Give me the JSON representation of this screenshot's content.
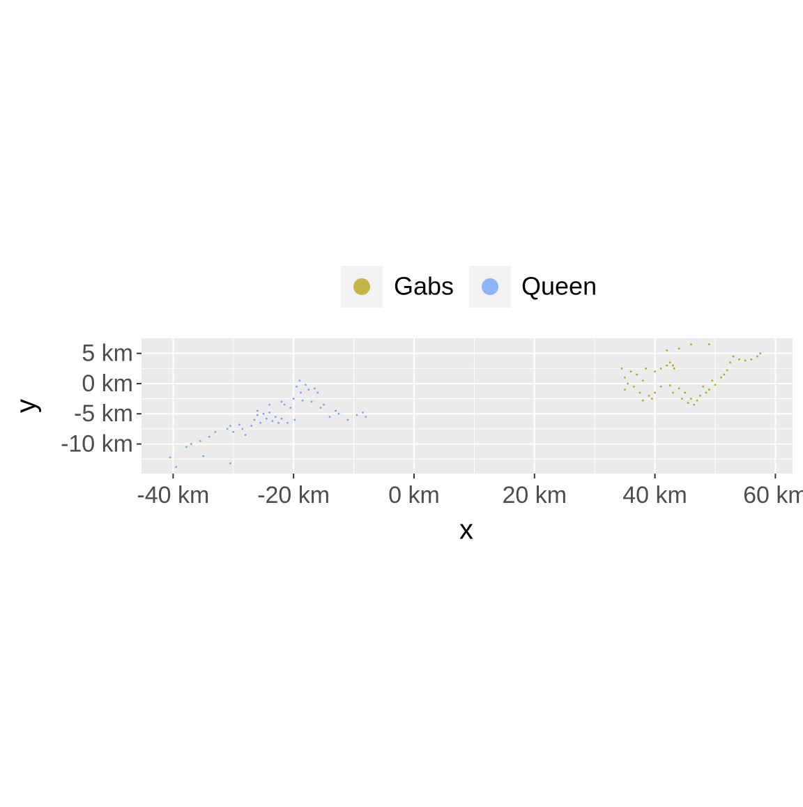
{
  "chart_data": {
    "type": "scatter",
    "x_label": "x",
    "y_label": "y",
    "xlim": [
      -45.25,
      62.85
    ],
    "ylim": [
      -14.9,
      7.5
    ],
    "xticks": [
      {
        "value": -40,
        "label": "-40 km"
      },
      {
        "value": -20,
        "label": "-20 km"
      },
      {
        "value": 0,
        "label": "0 km"
      },
      {
        "value": 20,
        "label": "20 km"
      },
      {
        "value": 40,
        "label": "40 km"
      },
      {
        "value": 60,
        "label": "60 km"
      }
    ],
    "yticks": [
      {
        "value": 5,
        "label": "5 km"
      },
      {
        "value": 0,
        "label": "0 km"
      },
      {
        "value": -5,
        "label": "-5 km"
      },
      {
        "value": -10,
        "label": "-10 km"
      }
    ],
    "xminor": [
      -30,
      -10,
      10,
      30,
      50
    ],
    "yminor": [
      2.5,
      -2.5,
      -7.5,
      -12.5
    ],
    "grid": true,
    "legend": "top",
    "series": [
      {
        "name": "Gabs",
        "color": "#b8a51a",
        "x": [
          34.5,
          35,
          35.5,
          35,
          36,
          36.5,
          37,
          37.5,
          38,
          38.5,
          39,
          39.5,
          40,
          40,
          41,
          42,
          42.5,
          43,
          43.2,
          42,
          44,
          42.5,
          44,
          45,
          46,
          45.5,
          46.5,
          47,
          47.5,
          48.5,
          49,
          49.5,
          50,
          51,
          51.5,
          52,
          52.5,
          53,
          54,
          55,
          56,
          57,
          57.5,
          41,
          43,
          48,
          46,
          49,
          38,
          44.5
        ],
        "values": [
          2.5,
          1,
          0,
          -1,
          2,
          -0.5,
          1.5,
          -1.5,
          0.5,
          2.5,
          -2,
          -2.5,
          -1.5,
          2,
          2.5,
          3,
          3.5,
          3,
          2.5,
          5.5,
          5.8,
          -0.3,
          -0.8,
          -1.5,
          -2.5,
          -3.2,
          -3.5,
          -2.8,
          -2,
          -1.5,
          -1,
          0.5,
          -0.2,
          1,
          1.5,
          2.2,
          3.5,
          4.5,
          4,
          3.8,
          4,
          4.5,
          5,
          -0.5,
          -1.5,
          -0.5,
          6.5,
          6.5,
          -2.8,
          -2.5
        ]
      },
      {
        "name": "Queen",
        "color": "#74a3f7",
        "x": [
          -40.5,
          -39.5,
          -37.8,
          -37,
          -35.5,
          -34,
          -33,
          -31,
          -30.5,
          -30,
          -29,
          -28.5,
          -28,
          -27,
          -26.5,
          -26,
          -25.5,
          -25,
          -24.5,
          -24,
          -23.5,
          -23,
          -22.5,
          -22,
          -21.5,
          -21,
          -20.5,
          -20,
          -19.8,
          -19.5,
          -19,
          -18.8,
          -18.5,
          -18,
          -17.5,
          -17,
          -16.5,
          -16,
          -15.5,
          -15,
          -14,
          -13,
          -12.5,
          -11,
          -9.5,
          -8.5,
          -8,
          -22,
          -30.5,
          -35,
          -24,
          -26
        ],
        "values": [
          -12.2,
          -13.8,
          -10.5,
          -10,
          -9.5,
          -8.8,
          -8,
          -7.5,
          -7,
          -8,
          -6.8,
          -7.5,
          -8.5,
          -7,
          -6,
          -5.2,
          -6.5,
          -5,
          -5.8,
          -4.8,
          -6.2,
          -5.5,
          -6.5,
          -5.8,
          -3.5,
          -6.5,
          -4,
          -2.5,
          -6,
          -0.5,
          0.5,
          -1.5,
          -2.8,
          -0.2,
          -1,
          -3,
          -0.8,
          -1.5,
          -4,
          -3.5,
          -5.5,
          -4.5,
          -5,
          -6,
          -5.2,
          -4.8,
          -5.5,
          -3,
          -13.2,
          -12,
          -3.5,
          -4.5
        ]
      }
    ]
  }
}
